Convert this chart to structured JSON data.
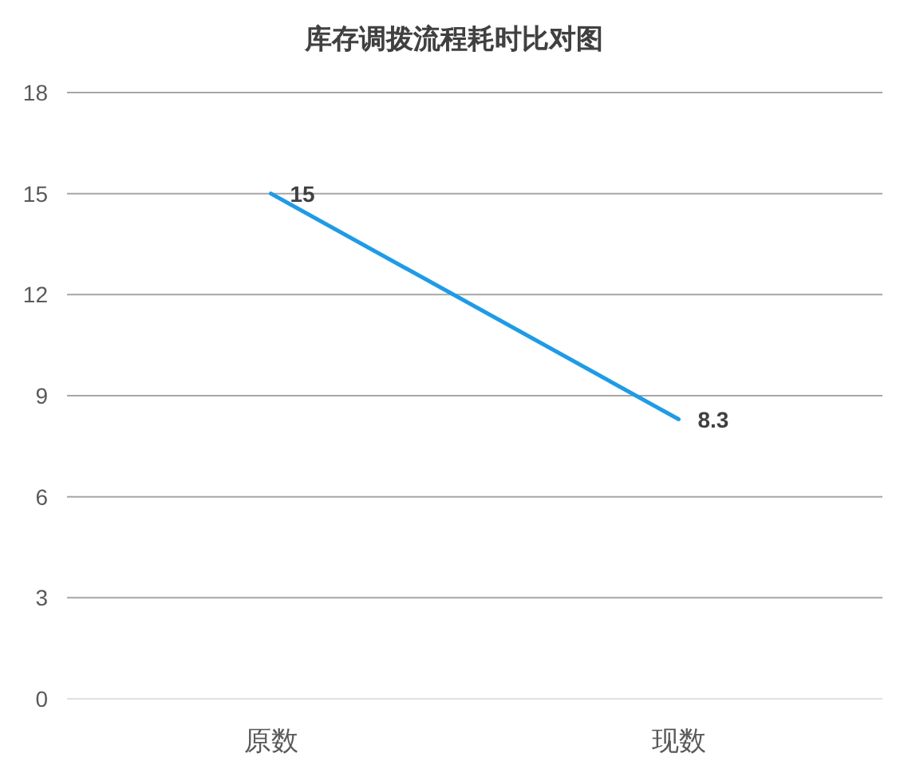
{
  "chart_data": {
    "type": "line",
    "title": "库存调拨流程耗时比对图",
    "categories": [
      "原数",
      "现数"
    ],
    "series": [
      {
        "color": "#1f9be6",
        "values": [
          15,
          8.3
        ]
      }
    ],
    "ylim": [
      0,
      18
    ],
    "yticks": [
      0,
      3,
      6,
      9,
      12,
      15,
      18
    ],
    "grid": "y",
    "data_labels": true,
    "marker": "none",
    "line_style": "solid"
  }
}
